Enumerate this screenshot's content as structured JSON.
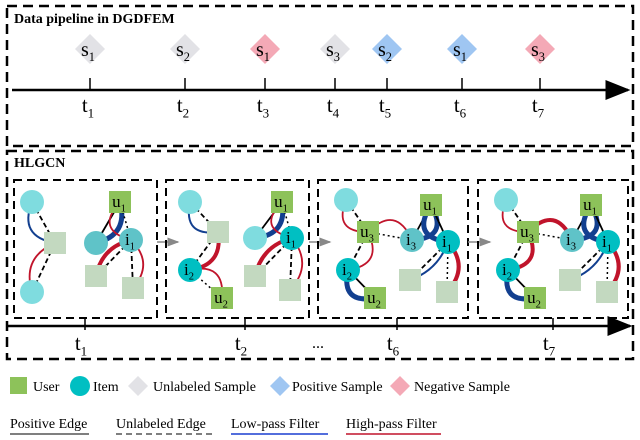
{
  "pipeline": {
    "title": "Data pipeline in DGDFEM",
    "samples": [
      {
        "base": "s",
        "sub": "1",
        "kind": "unlabeled"
      },
      {
        "base": "s",
        "sub": "2",
        "kind": "unlabeled"
      },
      {
        "base": "s",
        "sub": "1",
        "kind": "negative"
      },
      {
        "base": "s",
        "sub": "3",
        "kind": "unlabeled"
      },
      {
        "base": "s",
        "sub": "2",
        "kind": "positive"
      },
      {
        "base": "s",
        "sub": "1",
        "kind": "positive"
      },
      {
        "base": "s",
        "sub": "3",
        "kind": "negative"
      }
    ],
    "times": [
      {
        "base": "t",
        "sub": "1"
      },
      {
        "base": "t",
        "sub": "2"
      },
      {
        "base": "t",
        "sub": "3"
      },
      {
        "base": "t",
        "sub": "4"
      },
      {
        "base": "t",
        "sub": "5"
      },
      {
        "base": "t",
        "sub": "6"
      },
      {
        "base": "t",
        "sub": "7"
      }
    ]
  },
  "hlgcn": {
    "title": "HLGCN",
    "panels": [
      {
        "labels": [
          {
            "base": "u",
            "sub": "1"
          },
          {
            "base": "i",
            "sub": "1"
          }
        ]
      },
      {
        "labels": [
          {
            "base": "i",
            "sub": "2"
          },
          {
            "base": "u",
            "sub": "2"
          },
          {
            "base": "u",
            "sub": "1"
          },
          {
            "base": "i",
            "sub": "1"
          }
        ]
      },
      {
        "labels": [
          {
            "base": "u",
            "sub": "3"
          },
          {
            "base": "i",
            "sub": "3"
          },
          {
            "base": "u",
            "sub": "1"
          },
          {
            "base": "i",
            "sub": "1"
          },
          {
            "base": "i",
            "sub": "2"
          },
          {
            "base": "u",
            "sub": "2"
          }
        ]
      },
      {
        "labels": [
          {
            "base": "u",
            "sub": "3"
          },
          {
            "base": "i",
            "sub": "3"
          },
          {
            "base": "u",
            "sub": "1"
          },
          {
            "base": "i",
            "sub": "1"
          },
          {
            "base": "i",
            "sub": "2"
          },
          {
            "base": "u",
            "sub": "2"
          }
        ]
      }
    ],
    "times": [
      {
        "base": "t",
        "sub": "1"
      },
      {
        "base": "t",
        "sub": "2"
      },
      {
        "base": "t",
        "sub": "6"
      },
      {
        "base": "t",
        "sub": "7"
      }
    ],
    "ellipsis": "..."
  },
  "legend": {
    "user": "User",
    "item": "Item",
    "unlabeled_sample": "Unlabeled Sample",
    "positive_sample": "Positive Sample",
    "negative_sample": "Negative Sample",
    "positive_edge": "Positive Edge",
    "unlabeled_edge": "Unlabeled Edge",
    "low_pass": "Low-pass Filter",
    "high_pass": "High-pass Filter"
  },
  "colors": {
    "user": "#8dc25a",
    "user_faded": "#c3d9c0",
    "item": "#00bfc2",
    "item_light": "#7fdcdf",
    "item_mid": "#5fc3c8",
    "unlabeled": "#e2e2e6",
    "positive": "#9fc6f2",
    "negative": "#f4a9b6",
    "low_pass": "#123f8f",
    "high_pass": "#c0142b"
  }
}
